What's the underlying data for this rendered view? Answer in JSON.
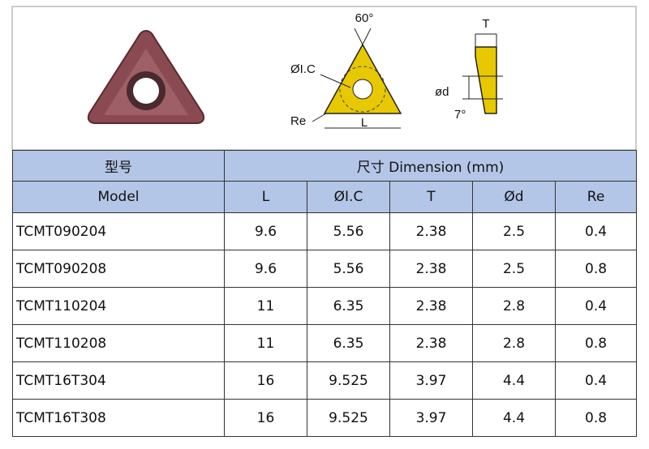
{
  "figure": {
    "labels": {
      "angle": "60°",
      "ic": "ØI.C",
      "re": "Re",
      "length": "L",
      "thickness": "T",
      "hole": "ød",
      "relief": "7°"
    }
  },
  "table": {
    "group_header": [
      "型号",
      "尺寸 Dimension (mm)"
    ],
    "columns": [
      "Model",
      "L",
      "ØI.C",
      "T",
      "Ød",
      "Re"
    ],
    "rows": [
      [
        "TCMT090204",
        "9.6",
        "5.56",
        "2.38",
        "2.5",
        "0.4"
      ],
      [
        "TCMT090208",
        "9.6",
        "5.56",
        "2.38",
        "2.5",
        "0.8"
      ],
      [
        "TCMT110204",
        "11",
        "6.35",
        "2.38",
        "2.8",
        "0.4"
      ],
      [
        "TCMT110208",
        "11",
        "6.35",
        "2.38",
        "2.8",
        "0.8"
      ],
      [
        "TCMT16T304",
        "16",
        "9.525",
        "3.97",
        "4.4",
        "0.4"
      ],
      [
        "TCMT16T308",
        "16",
        "9.525",
        "3.97",
        "4.4",
        "0.8"
      ]
    ]
  }
}
